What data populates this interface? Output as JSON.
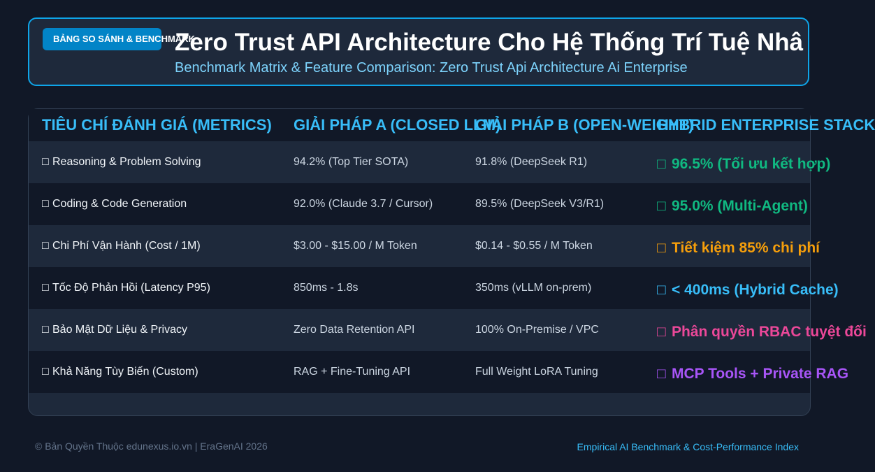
{
  "header": {
    "badge": "BẢNG SO SÁNH & BENCHMARK",
    "title": "Zero Trust API Architecture Cho Hệ Thống Trí Tuệ Nhâ",
    "subtitle": "Benchmark Matrix & Feature Comparison: Zero Trust Api Architecture Ai Enterprise"
  },
  "table": {
    "columns": [
      "TIÊU CHÍ ĐÁNH GIÁ (METRICS)",
      "GIẢI PHÁP A (CLOSED LLM)",
      "GIẢI PHÁP B (OPEN-WEIGHT)",
      "HYBRID ENTERPRISE STACK"
    ],
    "glyph": "□",
    "rows": [
      {
        "metric": "Reasoning & Problem Solving",
        "a": "94.2% (Top Tier SOTA)",
        "b": "91.8% (DeepSeek R1)",
        "hybrid": "96.5% (Tối ưu kết hợp)",
        "color": "#10b981"
      },
      {
        "metric": "Coding & Code Generation",
        "a": "92.0% (Claude 3.7 / Cursor)",
        "b": "89.5% (DeepSeek V3/R1)",
        "hybrid": "95.0% (Multi-Agent)",
        "color": "#10b981"
      },
      {
        "metric": "Chi Phí Vận Hành (Cost / 1M)",
        "a": "$3.00 - $15.00 / M Token",
        "b": "$0.14 - $0.55 / M Token",
        "hybrid": "Tiết kiệm 85% chi phí",
        "color": "#f59e0b"
      },
      {
        "metric": "Tốc Độ Phản Hồi (Latency P95)",
        "a": "850ms - 1.8s",
        "b": "350ms (vLLM on-prem)",
        "hybrid": "< 400ms (Hybrid Cache)",
        "color": "#38bdf8"
      },
      {
        "metric": "Bảo Mật Dữ Liệu & Privacy",
        "a": "Zero Data Retention API",
        "b": "100% On-Premise / VPC",
        "hybrid": "Phân quyền RBAC tuyệt đối",
        "color": "#ec4899"
      },
      {
        "metric": "Khả Năng Tùy Biến (Custom)",
        "a": "RAG + Fine-Tuning API",
        "b": "Full Weight LoRA Tuning",
        "hybrid": "MCP Tools + Private RAG",
        "color": "#a855f7"
      }
    ]
  },
  "footer": {
    "left": "© Bản Quyền Thuộc edunexus.io.vn | EraGenAI 2026",
    "right": "Empirical AI Benchmark & Cost-Performance Index"
  }
}
